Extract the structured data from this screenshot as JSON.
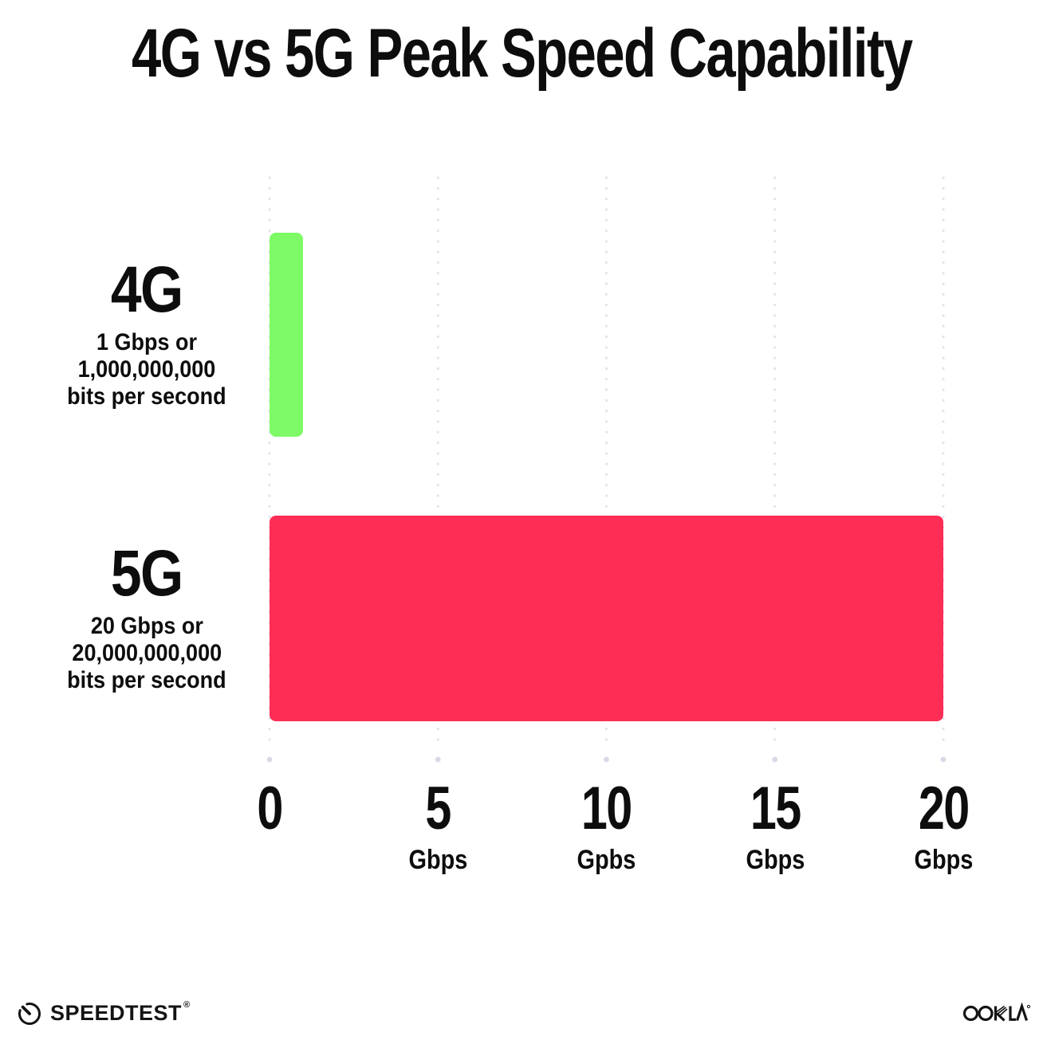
{
  "title": "4G vs 5G Peak Speed Capability",
  "chart_data": {
    "type": "bar",
    "orientation": "horizontal",
    "title": "4G vs 5G Peak Speed Capability",
    "categories": [
      "4G",
      "5G"
    ],
    "values": [
      1,
      20
    ],
    "value_unit": "Gbps",
    "bar_colors": [
      "#7EFA67",
      "#FD2D55"
    ],
    "xlim": [
      0,
      20
    ],
    "x_tick_values": [
      0,
      5,
      10,
      15,
      20
    ],
    "grid": "vertical-dotted",
    "legend": "none",
    "annotations": [
      "4G: 1 Gbps or 1,000,000,000 bits per second",
      "5G: 20 Gbps or 20,000,000,000 bits per second"
    ]
  },
  "rows": [
    {
      "label": "4G",
      "desc": [
        "1 Gbps or",
        "1,000,000,000",
        "bits per second"
      ],
      "value": 1,
      "color": "#7EFA67"
    },
    {
      "label": "5G",
      "desc": [
        "20 Gbps or",
        "20,000,000,000",
        "bits per second"
      ],
      "value": 20,
      "color": "#FD2D55"
    }
  ],
  "x_ticks": [
    {
      "num": "0",
      "unit": ""
    },
    {
      "num": "5",
      "unit": "Gbps"
    },
    {
      "num": "10",
      "unit": "Gpbs"
    },
    {
      "num": "15",
      "unit": "Gbps"
    },
    {
      "num": "20",
      "unit": "Gbps"
    }
  ],
  "footer": {
    "speedtest_label": "SPEEDTEST",
    "speedtest_mark": "®",
    "ookla_label": "OOKLA"
  },
  "colors": {
    "bar_4g": "#7EFA67",
    "bar_5g": "#FD2D55",
    "gridline": "#E4E4EF",
    "grid_end_dot": "#D9D9E6",
    "text": "#0D0D0D",
    "logo": "#141414"
  }
}
